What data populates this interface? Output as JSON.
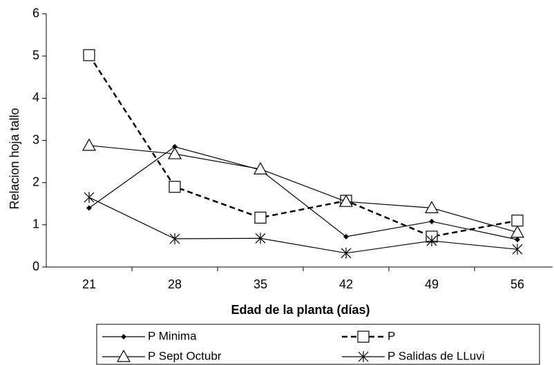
{
  "chart_data": {
    "type": "line",
    "xlabel": "Edad de la planta (días)",
    "ylabel": "Relacion hoja tallo",
    "categories": [
      "21",
      "28",
      "35",
      "42",
      "49",
      "56"
    ],
    "ylim": [
      0,
      6
    ],
    "yticks": [
      0,
      1,
      2,
      3,
      4,
      5,
      6
    ],
    "series": [
      {
        "name": "P Minima",
        "color": "#000000",
        "marker": "diamond",
        "dash": "solid",
        "values": [
          1.4,
          2.85,
          2.3,
          0.72,
          1.08,
          0.65
        ]
      },
      {
        "name": "P",
        "color": "#000000",
        "marker": "square",
        "dash": "dashed",
        "values": [
          5.02,
          1.9,
          1.17,
          1.57,
          0.72,
          1.1
        ]
      },
      {
        "name": "P Sept Octubr",
        "color": "#000000",
        "marker": "triangle",
        "dash": "solid",
        "values": [
          2.88,
          2.68,
          2.32,
          1.55,
          1.4,
          0.82
        ]
      },
      {
        "name": "P Salidas de LLuvi",
        "color": "#000000",
        "marker": "star",
        "dash": "solid",
        "values": [
          1.65,
          0.67,
          0.68,
          0.33,
          0.62,
          0.42
        ]
      }
    ]
  }
}
